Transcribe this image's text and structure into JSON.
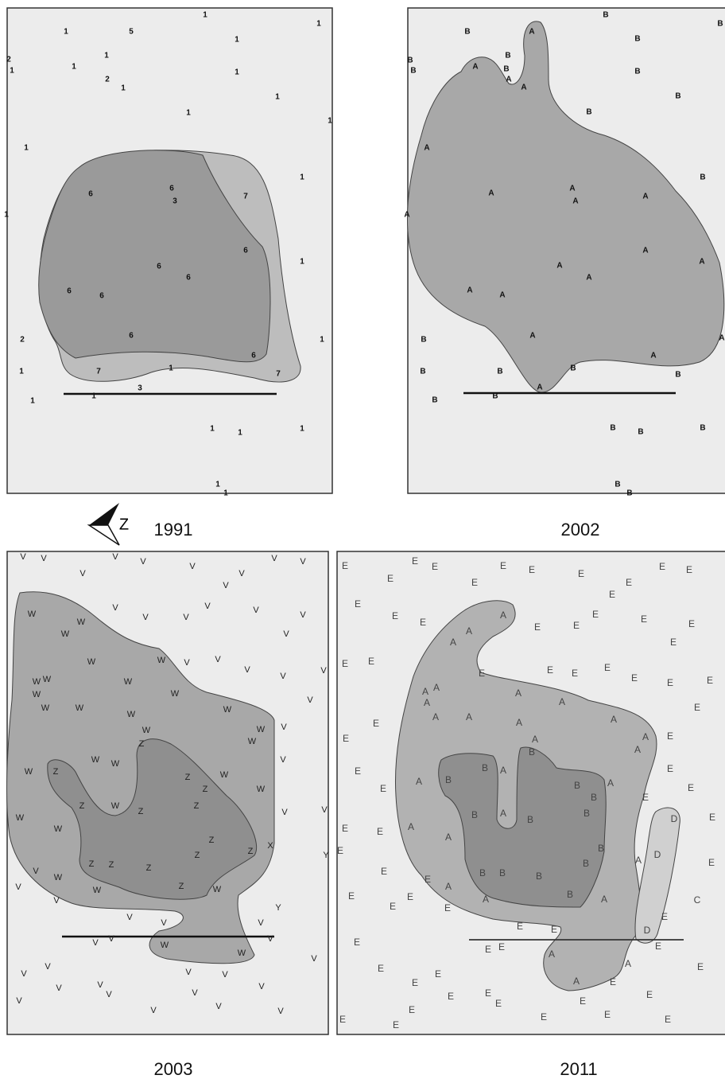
{
  "north": "Z",
  "panels": [
    {
      "year": "1991",
      "labels": [
        "1",
        "1",
        "5",
        "1",
        "1",
        "2",
        "1",
        "1",
        "1",
        "2",
        "1",
        "1",
        "1",
        "1",
        "1",
        "1",
        "1",
        "1",
        "6",
        "6",
        "3",
        "7",
        "6",
        "6",
        "6",
        "6",
        "6",
        "1",
        "6",
        "2",
        "1",
        "6",
        "1",
        "7",
        "1",
        "7",
        "1",
        "1",
        "3",
        "1",
        "1",
        "1",
        "1",
        "1"
      ]
    },
    {
      "year": "2002",
      "labels": [
        "B",
        "B",
        "A",
        "B",
        "B",
        "B",
        "B",
        "B",
        "A",
        "B",
        "A",
        "A",
        "B",
        "B",
        "B",
        "A",
        "B",
        "A",
        "A",
        "A",
        "A",
        "A",
        "A",
        "A",
        "A",
        "A",
        "A",
        "A",
        "B",
        "A",
        "A",
        "A",
        "B",
        "B",
        "B",
        "B",
        "A",
        "B",
        "B",
        "B",
        "B",
        "B",
        "B",
        "B"
      ]
    },
    {
      "year": "2003",
      "labels": [
        "V",
        "V",
        "V",
        "V",
        "V",
        "V",
        "V",
        "V",
        "V",
        "V",
        "W",
        "V",
        "W",
        "W",
        "V",
        "V",
        "V",
        "V",
        "V",
        "V",
        "W",
        "W",
        "V",
        "V",
        "V",
        "V",
        "V",
        "W",
        "W",
        "W",
        "W",
        "W",
        "V",
        "W",
        "W",
        "W",
        "W",
        "W",
        "W",
        "V",
        "W",
        "Z",
        "V",
        "W",
        "W",
        "W",
        "Z",
        "Z",
        "W",
        "Z",
        "W",
        "V",
        "W",
        "Z",
        "W",
        "Z",
        "Z",
        "V",
        "W",
        "Z",
        "Z",
        "X",
        "Z",
        "Y",
        "V",
        "Z",
        "Z",
        "Z",
        "W",
        "Z",
        "W",
        "W",
        "V",
        "V",
        "Y",
        "V",
        "V",
        "V",
        "V",
        "V",
        "V",
        "W",
        "W",
        "V",
        "V",
        "V",
        "V",
        "V",
        "V",
        "V",
        "V",
        "V",
        "V",
        "V",
        "V",
        "V",
        "V"
      ]
    },
    {
      "year": "2011",
      "labels": [
        "E",
        "E",
        "E",
        "E",
        "E",
        "E",
        "E",
        "E",
        "E",
        "E",
        "E",
        "E",
        "E",
        "E",
        "E",
        "A",
        "E",
        "E",
        "E",
        "E",
        "A",
        "A",
        "E",
        "E",
        "E",
        "E",
        "E",
        "E",
        "E",
        "E",
        "E",
        "E",
        "E",
        "A",
        "A",
        "A",
        "A",
        "A",
        "E",
        "A",
        "A",
        "A",
        "A",
        "E",
        "A",
        "A",
        "A",
        "B",
        "E",
        "E",
        "E",
        "B",
        "A",
        "E",
        "A",
        "B",
        "A",
        "B",
        "B",
        "E",
        "E",
        "E",
        "B",
        "A",
        "B",
        "B",
        "D",
        "E",
        "A",
        "E",
        "E",
        "A",
        "B",
        "A",
        "D",
        "E",
        "E",
        "B",
        "E",
        "B",
        "B",
        "B",
        "E",
        "A",
        "E",
        "E",
        "E",
        "A",
        "B",
        "A",
        "C",
        "E",
        "E",
        "E",
        "E",
        "D",
        "E",
        "E",
        "E",
        "E",
        "A",
        "A",
        "E",
        "E",
        "E",
        "E",
        "E",
        "A",
        "E",
        "E",
        "E",
        "E",
        "E",
        "E",
        "E",
        "E",
        "E",
        "E",
        "E"
      ]
    }
  ]
}
